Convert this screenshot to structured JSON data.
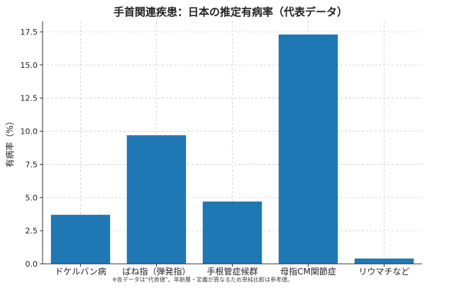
{
  "chart_data": {
    "type": "bar",
    "title": "手首関連疾患：日本の推定有病率（代表データ）",
    "ylabel": "有病率（%）",
    "xlabel": "",
    "categories": [
      "ドケルバン病",
      "ばね指（弾発指）",
      "手根管症候群",
      "母指CM関節症",
      "リウマチなど"
    ],
    "values": [
      3.7,
      9.7,
      4.7,
      17.3,
      0.4
    ],
    "ylim": [
      0,
      18.3
    ],
    "yticks": [
      "0.0",
      "2.5",
      "5.0",
      "7.5",
      "10.0",
      "12.5",
      "15.0",
      "17.5"
    ],
    "grid": true,
    "bar_color": "#1f77b4"
  },
  "footnote": "※各データは“代表値”。年齢層・定義が異なるため単純比較は参考値。"
}
